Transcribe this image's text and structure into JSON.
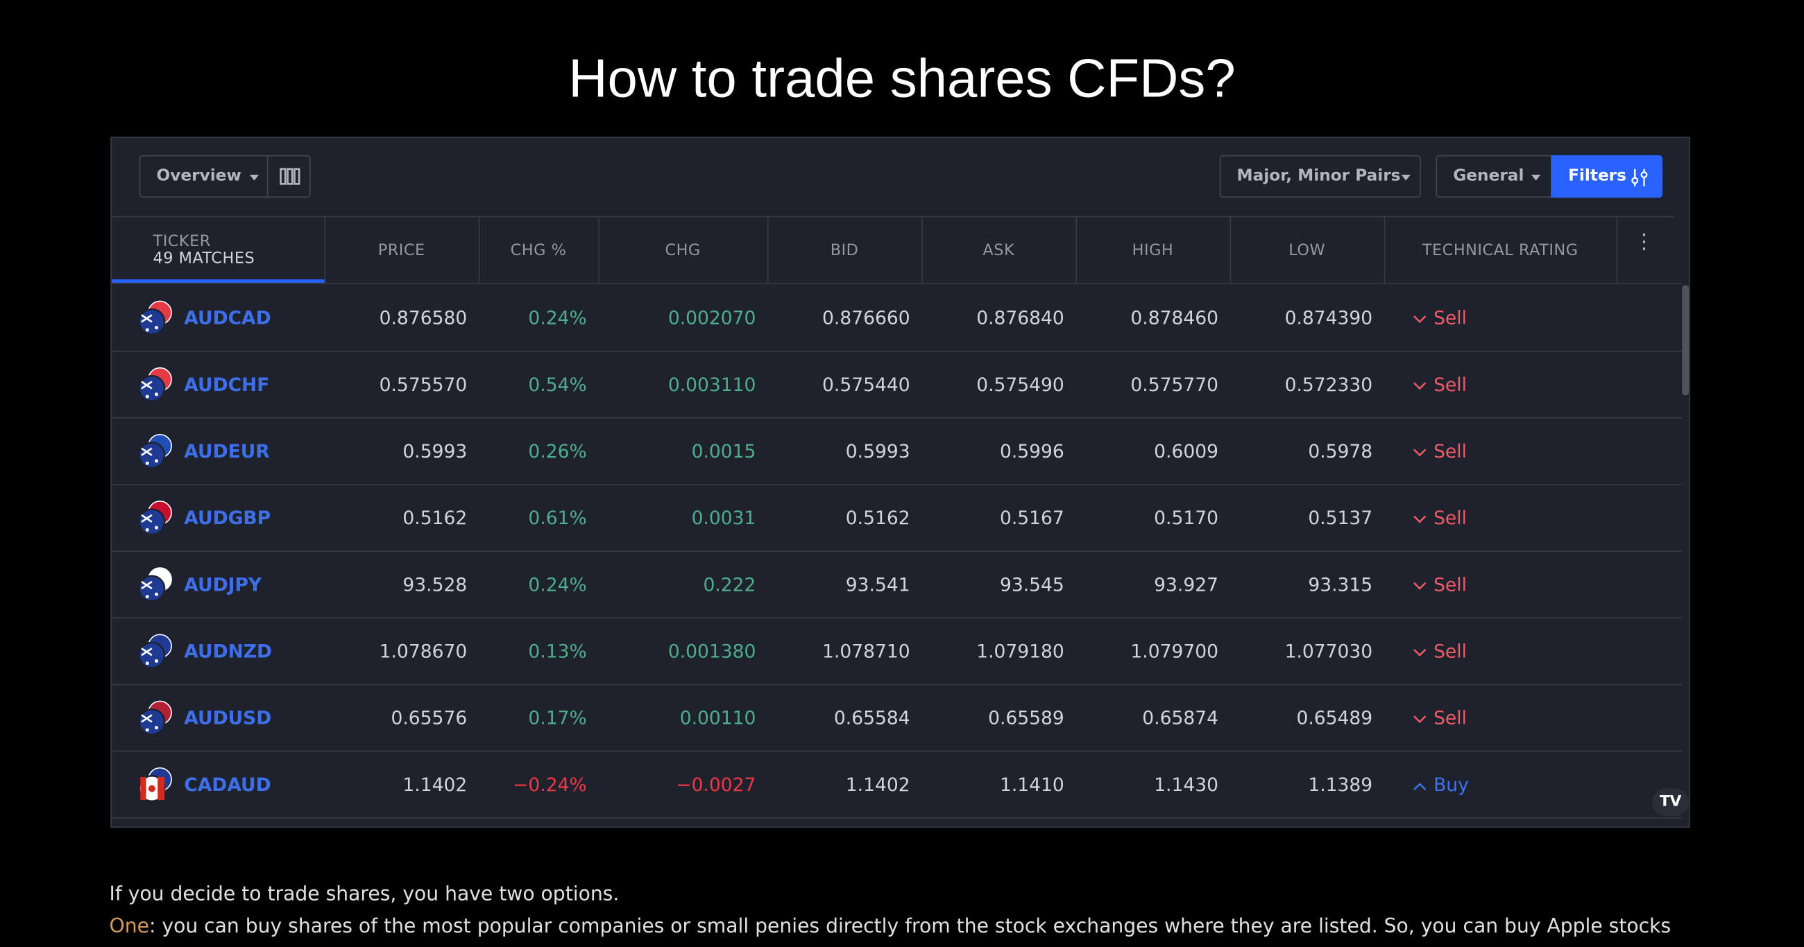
{
  "header": {
    "title": "How to trade shares CFDs?"
  },
  "toolbar": {
    "view": "Overview",
    "market": "Major, Minor Pairs",
    "columns_set": "General",
    "filters": "Filters"
  },
  "table": {
    "ticker_header": "TICKER",
    "matches": "49 MATCHES",
    "columns": [
      "PRICE",
      "CHG %",
      "CHG",
      "BID",
      "ASK",
      "HIGH",
      "LOW",
      "TECHNICAL RATING"
    ],
    "rows": [
      [
        "AUDCAD",
        "0.876580",
        "0.24%",
        "0.002070",
        "0.876660",
        "0.876840",
        "0.878460",
        "0.874390",
        "Sell"
      ],
      [
        "AUDCHF",
        "0.575570",
        "0.54%",
        "0.003110",
        "0.575440",
        "0.575490",
        "0.575770",
        "0.572330",
        "Sell"
      ],
      [
        "AUDEUR",
        "0.5993",
        "0.26%",
        "0.0015",
        "0.5993",
        "0.5996",
        "0.6009",
        "0.5978",
        "Sell"
      ],
      [
        "AUDGBP",
        "0.5162",
        "0.61%",
        "0.0031",
        "0.5162",
        "0.5167",
        "0.5170",
        "0.5137",
        "Sell"
      ],
      [
        "AUDJPY",
        "93.528",
        "0.24%",
        "0.222",
        "93.541",
        "93.545",
        "93.927",
        "93.315",
        "Sell"
      ],
      [
        "AUDNZD",
        "1.078670",
        "0.13%",
        "0.001380",
        "1.078710",
        "1.079180",
        "1.079700",
        "1.077030",
        "Sell"
      ],
      [
        "AUDUSD",
        "0.65576",
        "0.17%",
        "0.00110",
        "0.65584",
        "0.65589",
        "0.65874",
        "0.65489",
        "Sell"
      ],
      [
        "CADAUD",
        "1.1402",
        "−0.24%",
        "−0.0027",
        "1.1402",
        "1.1410",
        "1.1430",
        "1.1389",
        "Buy"
      ]
    ]
  },
  "text": {
    "intro": "If you decide to trade shares, you have two options.",
    "lead": "One",
    "body": ": you can buy shares of the most popular companies or small penies directly from the stock exchanges where they are listed. So, you can buy Apple stocks"
  }
}
